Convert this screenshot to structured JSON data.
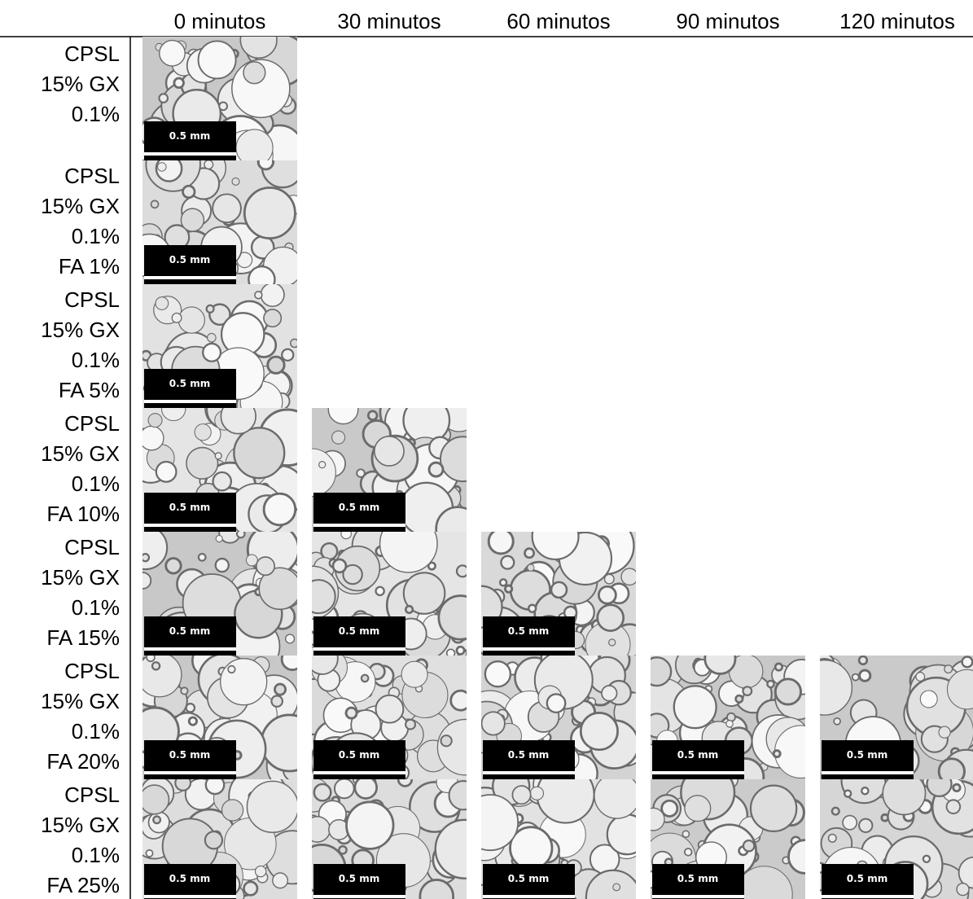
{
  "header": {
    "columns": [
      "0 minutos",
      "30 minutos",
      "60 minutos",
      "90 minutos",
      "120 minutos"
    ]
  },
  "rows": [
    {
      "label": [
        "CPSL",
        "15% GX",
        "0.1%"
      ],
      "cells": [
        "0.5 mm"
      ]
    },
    {
      "label": [
        "CPSL",
        "15% GX",
        "0.1%",
        "FA 1%"
      ],
      "cells": [
        "0.5 mm"
      ]
    },
    {
      "label": [
        "CPSL",
        "15% GX",
        "0.1%",
        "FA 5%"
      ],
      "cells": [
        "0.5 mm"
      ]
    },
    {
      "label": [
        "CPSL",
        "15% GX",
        "0.1%",
        "FA 10%"
      ],
      "cells": [
        "0.5 mm",
        "0.5 mm"
      ]
    },
    {
      "label": [
        "CPSL",
        "15% GX",
        "0.1%",
        "FA 15%"
      ],
      "cells": [
        "0.5 mm",
        "0.5 mm",
        "0.5 mm"
      ]
    },
    {
      "label": [
        "CPSL",
        "15% GX",
        "0.1%",
        "FA 20%"
      ],
      "cells": [
        "0.5 mm",
        "0.5 mm",
        "0.5 mm",
        "0.5 mm",
        "0.5 mm"
      ]
    },
    {
      "label": [
        "CPSL",
        "15% GX",
        "0.1%",
        "FA 25%"
      ],
      "cells": [
        "0.5 mm",
        "0.5 mm",
        "0.5 mm",
        "0.5 mm",
        "0.5 mm"
      ]
    }
  ]
}
